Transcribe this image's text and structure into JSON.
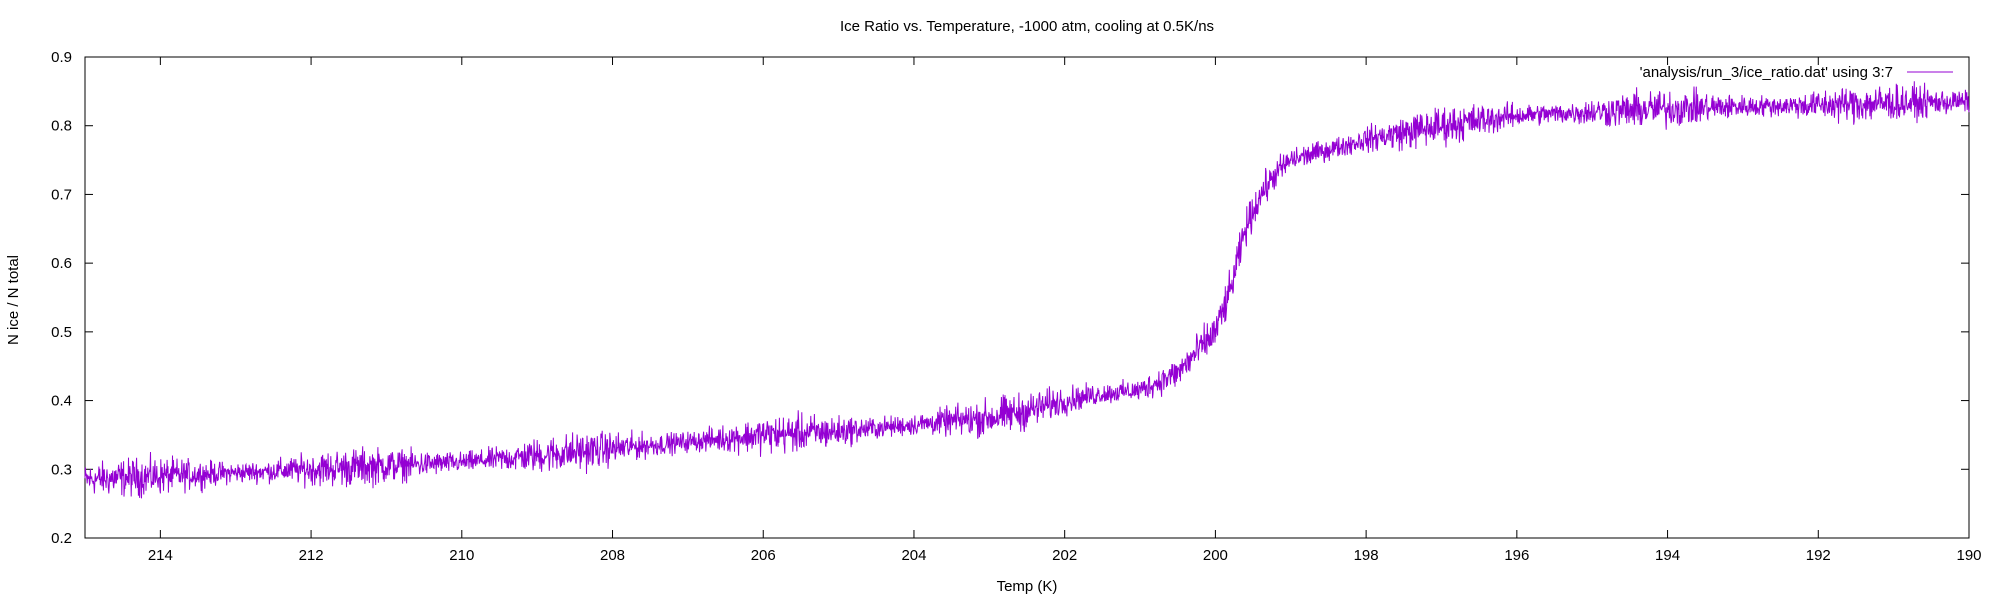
{
  "chart_data": {
    "type": "line",
    "title": "Ice Ratio vs. Temperature, -1000 atm, cooling at 0.5K/ns",
    "xlabel": "Temp (K)",
    "ylabel": "N ice / N total",
    "xlim": [
      215,
      190
    ],
    "ylim": [
      0.2,
      0.9
    ],
    "x_reversed": true,
    "xticks": [
      214,
      212,
      210,
      208,
      206,
      204,
      202,
      200,
      198,
      196,
      194,
      192,
      190
    ],
    "yticks": [
      0.2,
      0.3,
      0.4,
      0.5,
      0.6,
      0.7,
      0.8,
      0.9
    ],
    "grid": false,
    "legend_position": "top-right",
    "series": [
      {
        "name": "'analysis/run_3/ice_ratio.dat' using 3:7",
        "color": "#9400d3",
        "noise_amplitude": 0.013,
        "x": [
          215,
          214,
          213,
          212,
          211,
          210,
          209,
          208,
          207,
          206,
          205,
          204,
          203,
          202.5,
          202,
          201.5,
          201,
          200.5,
          200,
          199.8,
          199.6,
          199.4,
          199.2,
          199,
          198.5,
          198,
          197,
          196,
          195,
          194,
          193,
          192,
          191,
          190
        ],
        "y": [
          0.285,
          0.29,
          0.295,
          0.3,
          0.305,
          0.31,
          0.32,
          0.33,
          0.34,
          0.35,
          0.355,
          0.365,
          0.375,
          0.385,
          0.4,
          0.41,
          0.415,
          0.44,
          0.5,
          0.56,
          0.65,
          0.7,
          0.73,
          0.75,
          0.765,
          0.78,
          0.8,
          0.815,
          0.82,
          0.825,
          0.828,
          0.83,
          0.833,
          0.835
        ]
      }
    ]
  }
}
